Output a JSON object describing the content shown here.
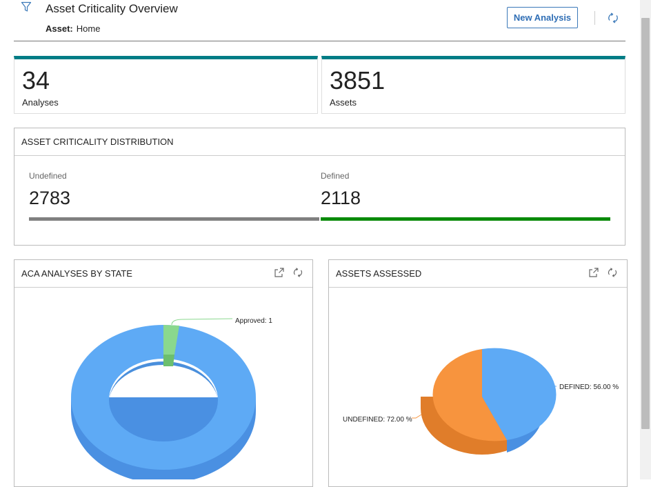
{
  "header": {
    "title": "Asset Criticality Overview",
    "asset_label": "Asset:",
    "asset_value": "Home",
    "new_analysis_label": "New Analysis"
  },
  "stats": [
    {
      "value": "34",
      "label": "Analyses"
    },
    {
      "value": "3851",
      "label": "Assets"
    }
  ],
  "distribution": {
    "title": "ASSET CRITICALITY DISTRIBUTION",
    "undefined_label": "Undefined",
    "undefined_value": "2783",
    "defined_label": "Defined",
    "defined_value": "2118"
  },
  "colors": {
    "accent": "#007d86",
    "button": "#2f6eb5",
    "undefined_bar": "#808080",
    "defined_bar": "#0a8a0a",
    "blue_slice": "#5eaaf5",
    "green_slice": "#8ad88e",
    "orange_slice": "#f7943e"
  },
  "chart_data": [
    {
      "type": "pie",
      "title": "ACA ANALYSES BY STATE",
      "style": "donut-3d",
      "slices": [
        {
          "label": "Approved: 1",
          "value": 1
        },
        {
          "label": "",
          "value": 33
        }
      ]
    },
    {
      "type": "pie",
      "title": "ASSETS ASSESSED",
      "style": "pie-3d",
      "slices": [
        {
          "label": "DEFINED: 56.00 %",
          "value": 56.0
        },
        {
          "label": "UNDEFINED: 72.00 %",
          "value": 72.0
        }
      ]
    }
  ],
  "icons": {
    "filter": "filter-icon",
    "refresh": "refresh-icon",
    "pop_out": "pop-out-icon"
  }
}
